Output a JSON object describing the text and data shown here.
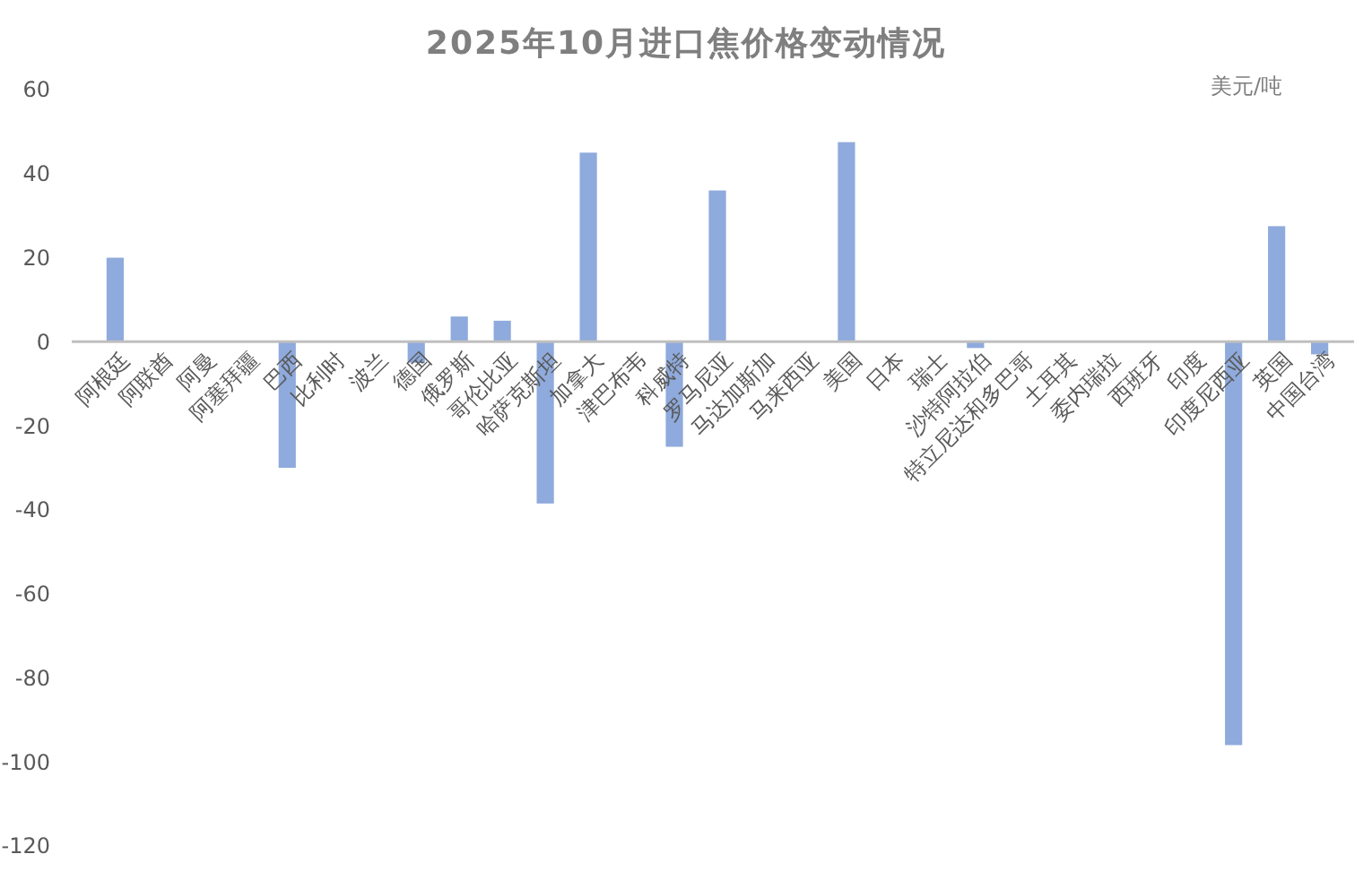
{
  "chart_data": {
    "type": "bar",
    "title": "2025年10月进口焦价格变动情况",
    "annotations": [
      "美元/吨"
    ],
    "categories": [
      "阿根廷",
      "阿联酋",
      "阿曼",
      "阿塞拜疆",
      "巴西",
      "比利时",
      "波兰",
      "德国",
      "俄罗斯",
      "哥伦比亚",
      "哈萨克斯坦",
      "加拿大",
      "津巴布韦",
      "科威特",
      "罗马尼亚",
      "马达加斯加",
      "马来西亚",
      "美国",
      "日本",
      "瑞士",
      "沙特阿拉伯",
      "特立尼达和多巴哥",
      "土耳其",
      "委内瑞拉",
      "西班牙",
      "印度",
      "印度尼西亚",
      "英国",
      "中国台湾"
    ],
    "values": [
      20,
      0,
      0,
      0,
      -30,
      0,
      0,
      -5,
      6,
      5,
      -38.5,
      45,
      0,
      -25,
      36,
      0,
      0,
      47.5,
      0,
      0,
      -1.5,
      0,
      0,
      0,
      0,
      0,
      -96,
      27.5,
      -3
    ],
    "color": "#8faadc",
    "ylim": [
      -120,
      60
    ],
    "yticks": [
      -120,
      -100,
      -80,
      -60,
      -40,
      -20,
      0,
      20,
      40,
      60
    ],
    "grid": false
  }
}
